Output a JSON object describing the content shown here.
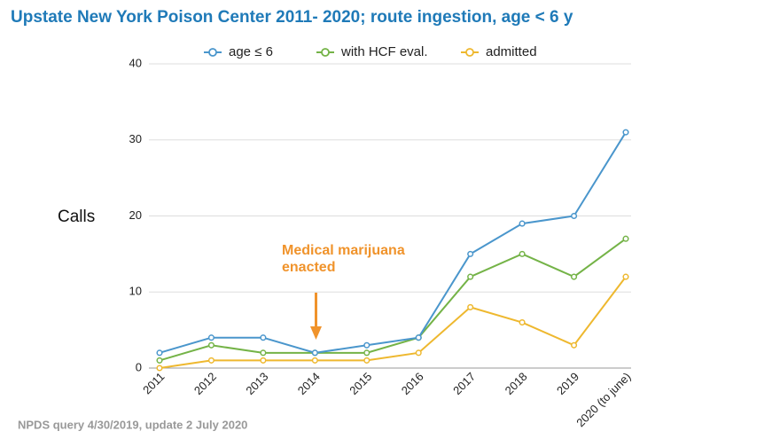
{
  "chart_data": {
    "type": "line",
    "title": "Upstate New York Poison Center 2011- 2020; route ingestion, age < 6 y",
    "y_label": "Calls",
    "annotation": [
      "Medical marijuana",
      "enacted"
    ],
    "footnote": "NPDS query 4/30/2019, update 2 July 2020",
    "categories": [
      "2011",
      "2012",
      "2013",
      "2014",
      "2015",
      "2016",
      "2017",
      "2018",
      "2019",
      "2020 (to june)"
    ],
    "series": [
      {
        "name": "age ≤ 6",
        "color": "#4a96cc",
        "values": [
          2,
          4,
          4,
          2,
          3,
          4,
          15,
          19,
          20,
          31
        ]
      },
      {
        "name": "with HCF eval.",
        "color": "#74b347",
        "values": [
          1,
          3,
          2,
          2,
          2,
          4,
          12,
          15,
          12,
          17
        ]
      },
      {
        "name": "admitted",
        "color": "#eeb82f",
        "values": [
          0,
          1,
          1,
          1,
          1,
          2,
          8,
          6,
          3,
          12
        ]
      }
    ],
    "ylim": [
      0,
      40
    ],
    "yticks": [
      0,
      10,
      20,
      30,
      40
    ],
    "grid": true
  }
}
